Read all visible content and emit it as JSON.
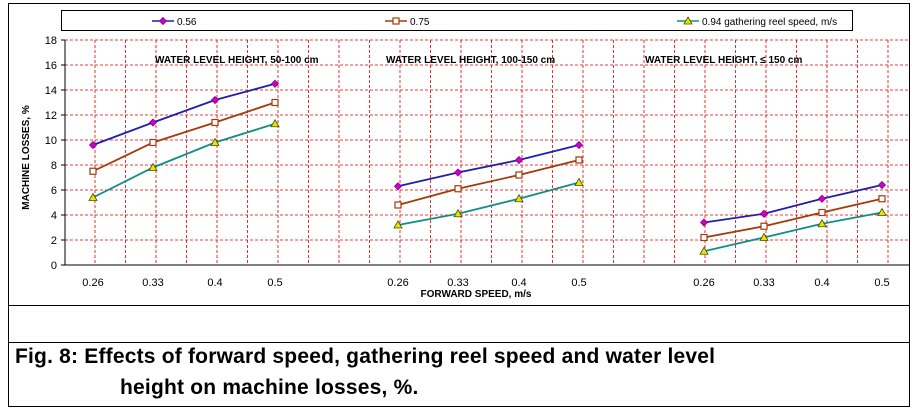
{
  "chart_data": {
    "type": "line",
    "ylabel": "MACHINE LOSSES, %",
    "xlabel": "FORWARD SPEED, m/s",
    "ylim": [
      0,
      18
    ],
    "yticks": [
      0,
      2,
      4,
      6,
      8,
      10,
      12,
      14,
      16,
      18
    ],
    "grid": true,
    "legend_position": "top",
    "categories": [
      "0.26",
      "0.33",
      "0.4",
      "0.5"
    ],
    "legend": [
      {
        "label": "0.56",
        "color": "#1f1fa8",
        "marker": "diamond"
      },
      {
        "label": "0.75",
        "color": "#a33a0a",
        "marker": "square"
      },
      {
        "label": "0.94  gathering reel speed, m/s",
        "color": "#0f8f86",
        "marker": "triangle"
      }
    ],
    "panels": [
      {
        "title": "WATER LEVEL HEIGHT, 50-100  cm",
        "series": [
          {
            "name": "0.56",
            "values": [
              9.6,
              11.4,
              13.2,
              14.5
            ]
          },
          {
            "name": "0.75",
            "values": [
              7.5,
              9.8,
              11.4,
              13.0
            ]
          },
          {
            "name": "0.94",
            "values": [
              5.4,
              7.8,
              9.8,
              11.3
            ]
          }
        ]
      },
      {
        "title": "WATER LEVEL HEIGHT, 100-150  cm",
        "series": [
          {
            "name": "0.56",
            "values": [
              6.3,
              7.4,
              8.4,
              9.6
            ]
          },
          {
            "name": "0.75",
            "values": [
              4.8,
              6.1,
              7.2,
              8.4
            ]
          },
          {
            "name": "0.94",
            "values": [
              3.2,
              4.1,
              5.3,
              6.6
            ]
          }
        ]
      },
      {
        "title": "WATER LEVEL HEIGHT, ≤ 150  cm",
        "series": [
          {
            "name": "0.56",
            "values": [
              3.4,
              4.1,
              5.3,
              6.4
            ]
          },
          {
            "name": "0.75",
            "values": [
              2.2,
              3.1,
              4.2,
              5.3
            ]
          },
          {
            "name": "0.94",
            "values": [
              1.1,
              2.2,
              3.3,
              4.2
            ]
          }
        ]
      }
    ]
  },
  "caption": {
    "line1": "Fig. 8: Effects of forward speed, gathering reel speed and water level",
    "line2": "height on machine losses, %."
  }
}
